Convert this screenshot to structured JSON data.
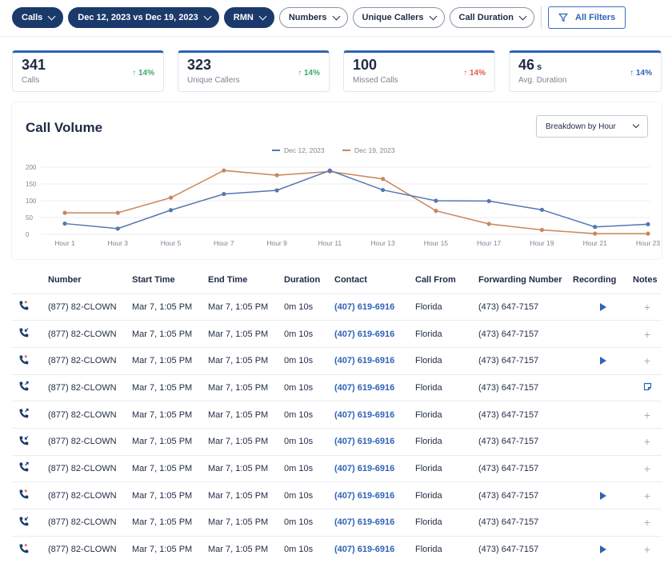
{
  "filters": {
    "calls": "Calls",
    "date_range": "Dec 12, 2023 vs Dec 19, 2023",
    "rmn": "RMN",
    "numbers": "Numbers",
    "unique_callers": "Unique Callers",
    "call_duration": "Call Duration",
    "all_filters": "All Filters"
  },
  "kpis": [
    {
      "value": "341",
      "unit": "",
      "label": "Calls",
      "delta": "14%",
      "direction": "up",
      "color": "#3fa86b"
    },
    {
      "value": "323",
      "unit": "",
      "label": "Unique Callers",
      "delta": "14%",
      "direction": "up",
      "color": "#3fa86b"
    },
    {
      "value": "100",
      "unit": "",
      "label": "Missed Calls",
      "delta": "14%",
      "direction": "up",
      "color": "#e05b47"
    },
    {
      "value": "46",
      "unit": "s",
      "label": "Avg. Duration",
      "delta": "14%",
      "direction": "up",
      "color": "#2f63b8"
    }
  ],
  "call_volume": {
    "title": "Call Volume",
    "breakdown": "Breakdown by Hour"
  },
  "chart_data": {
    "type": "line",
    "x": [
      "Hour 1",
      "Hour 3",
      "Hour 5",
      "Hour 7",
      "Hour 9",
      "Hour 11",
      "Hour 13",
      "Hour 15",
      "Hour 17",
      "Hour 19",
      "Hour 21",
      "Hour 23"
    ],
    "yticks": [
      0,
      50,
      100,
      150,
      200
    ],
    "ylim": [
      0,
      200
    ],
    "grid": true,
    "legend": "top-center",
    "series": [
      {
        "name": "Dec 12, 2023",
        "color": "#5577b0",
        "values": [
          32,
          17,
          72,
          120,
          131,
          190,
          132,
          100,
          99,
          73,
          22,
          30
        ]
      },
      {
        "name": "Dec 19, 2023",
        "color": "#c8875a",
        "values": [
          64,
          64,
          109,
          190,
          176,
          187,
          165,
          70,
          31,
          13,
          2,
          2
        ]
      }
    ]
  },
  "table": {
    "headers": {
      "number": "Number",
      "start": "Start Time",
      "end": "End Time",
      "duration": "Duration",
      "contact": "Contact",
      "from": "Call From",
      "forwarding": "Forwarding Number",
      "recording": "Recording",
      "notes": "Notes"
    },
    "rows": [
      {
        "icon": "missed-call-icon",
        "number": "(877) 82-CLOWN",
        "start": "Mar 7, 1:05 PM",
        "end": "Mar 7, 1:05 PM",
        "duration": "0m 10s",
        "contact": "(407) 619-6916",
        "from": "Florida",
        "forwarding": "(473) 647-7157",
        "recording": true,
        "note": false
      },
      {
        "icon": "incoming-call-icon",
        "number": "(877) 82-CLOWN",
        "start": "Mar 7, 1:05 PM",
        "end": "Mar 7, 1:05 PM",
        "duration": "0m 10s",
        "contact": "(407) 619-6916",
        "from": "Florida",
        "forwarding": "(473) 647-7157",
        "recording": false,
        "note": false
      },
      {
        "icon": "missed-call-icon",
        "number": "(877) 82-CLOWN",
        "start": "Mar 7, 1:05 PM",
        "end": "Mar 7, 1:05 PM",
        "duration": "0m 10s",
        "contact": "(407) 619-6916",
        "from": "Florida",
        "forwarding": "(473) 647-7157",
        "recording": true,
        "note": false
      },
      {
        "icon": "outgoing-call-icon",
        "number": "(877) 82-CLOWN",
        "start": "Mar 7, 1:05 PM",
        "end": "Mar 7, 1:05 PM",
        "duration": "0m 10s",
        "contact": "(407) 619-6916",
        "from": "Florida",
        "forwarding": "(473) 647-7157",
        "recording": false,
        "note": true
      },
      {
        "icon": "outgoing-call-icon",
        "number": "(877) 82-CLOWN",
        "start": "Mar 7, 1:05 PM",
        "end": "Mar 7, 1:05 PM",
        "duration": "0m 10s",
        "contact": "(407) 619-6916",
        "from": "Florida",
        "forwarding": "(473) 647-7157",
        "recording": false,
        "note": false
      },
      {
        "icon": "incoming-call-icon",
        "number": "(877) 82-CLOWN",
        "start": "Mar 7, 1:05 PM",
        "end": "Mar 7, 1:05 PM",
        "duration": "0m 10s",
        "contact": "(407) 619-6916",
        "from": "Florida",
        "forwarding": "(473) 647-7157",
        "recording": false,
        "note": false
      },
      {
        "icon": "outgoing-call-icon",
        "number": "(877) 82-CLOWN",
        "start": "Mar 7, 1:05 PM",
        "end": "Mar 7, 1:05 PM",
        "duration": "0m 10s",
        "contact": "(407) 619-6916",
        "from": "Florida",
        "forwarding": "(473) 647-7157",
        "recording": false,
        "note": false
      },
      {
        "icon": "missed-call-icon",
        "number": "(877) 82-CLOWN",
        "start": "Mar 7, 1:05 PM",
        "end": "Mar 7, 1:05 PM",
        "duration": "0m 10s",
        "contact": "(407) 619-6916",
        "from": "Florida",
        "forwarding": "(473) 647-7157",
        "recording": true,
        "note": false
      },
      {
        "icon": "incoming-call-icon",
        "number": "(877) 82-CLOWN",
        "start": "Mar 7, 1:05 PM",
        "end": "Mar 7, 1:05 PM",
        "duration": "0m 10s",
        "contact": "(407) 619-6916",
        "from": "Florida",
        "forwarding": "(473) 647-7157",
        "recording": false,
        "note": false
      },
      {
        "icon": "missed-call-icon",
        "number": "(877) 82-CLOWN",
        "start": "Mar 7, 1:05 PM",
        "end": "Mar 7, 1:05 PM",
        "duration": "0m 10s",
        "contact": "(407) 619-6916",
        "from": "Florida",
        "forwarding": "(473) 647-7157",
        "recording": true,
        "note": false
      }
    ]
  }
}
